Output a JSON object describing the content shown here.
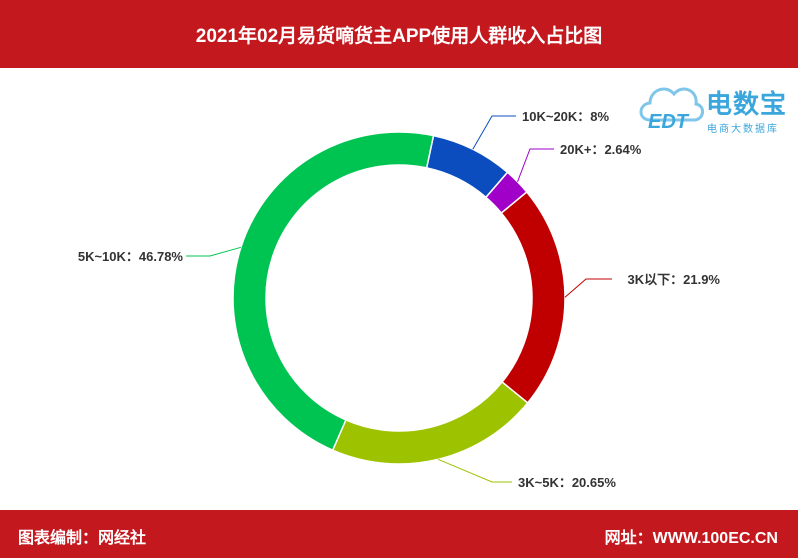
{
  "header": {
    "title": "2021年02月易货嘀货主APP使用人群收入占比图"
  },
  "footer": {
    "left": "图表编制：网经社",
    "right": "网址：WWW.100EC.CN"
  },
  "logo": {
    "brand": "电数宝",
    "sub": "电商大数据库",
    "mark": "EDT"
  },
  "colors": {
    "banner": "#c4181f"
  },
  "chart_data": {
    "type": "pie",
    "style": "donut",
    "title": "2021年02月易货嘀货主APP使用人群收入占比图",
    "slices": [
      {
        "label": "10K~20K",
        "value": 8,
        "display": "10K~20K：8%",
        "color": "#0b4dbf"
      },
      {
        "label": "20K+",
        "value": 2.64,
        "display": "20K+：2.64%",
        "color": "#a000c8"
      },
      {
        "label": "3K以下",
        "value": 21.9,
        "display": "3K以下：21.9%",
        "color": "#c00000"
      },
      {
        "label": "3K~5K",
        "value": 20.65,
        "display": "3K~5K：20.65%",
        "color": "#9dc300"
      },
      {
        "label": "5K~10K",
        "value": 46.78,
        "display": "5K~10K：46.78%",
        "color": "#00c452"
      }
    ]
  }
}
